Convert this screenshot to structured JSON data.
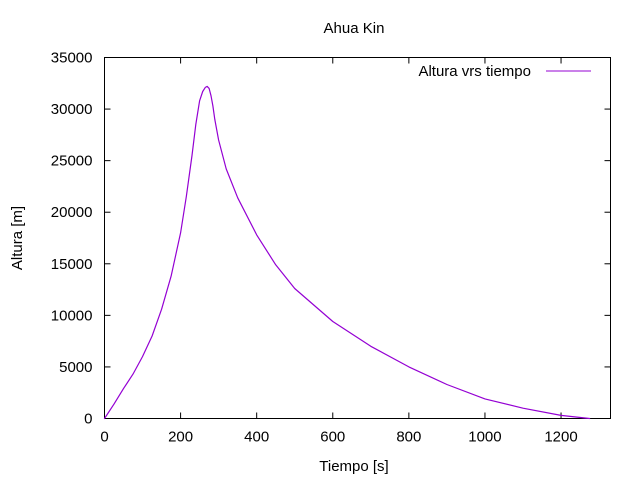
{
  "chart_data": {
    "type": "line",
    "title": "Ahua Kin",
    "xlabel": "Tiempo [s]",
    "ylabel": "Altura [m]",
    "xlim": [
      0,
      1330
    ],
    "ylim": [
      0,
      35000
    ],
    "x_ticks": [
      0,
      200,
      400,
      600,
      800,
      1000,
      1200
    ],
    "y_ticks": [
      0,
      5000,
      10000,
      15000,
      20000,
      25000,
      30000,
      35000
    ],
    "x_tick_labels": [
      "0",
      "200",
      "400",
      "600",
      "800",
      "1000",
      "1200"
    ],
    "y_tick_labels": [
      "0",
      "5000",
      "10000",
      "15000",
      "20000",
      "25000",
      "30000",
      "35000"
    ],
    "grid": false,
    "legend_position": "top-right",
    "series": [
      {
        "name": "Altura vrs tiempo",
        "color": "#9400d3",
        "x": [
          0,
          25,
          50,
          75,
          100,
          125,
          150,
          175,
          200,
          215,
          230,
          240,
          250,
          258,
          265,
          270,
          275,
          280,
          285,
          290,
          300,
          320,
          350,
          400,
          450,
          500,
          600,
          700,
          800,
          900,
          1000,
          1100,
          1200,
          1275
        ],
        "y": [
          0,
          1400,
          2900,
          4300,
          6000,
          8000,
          10600,
          13800,
          18000,
          21500,
          25500,
          28500,
          30800,
          31700,
          32100,
          32200,
          32000,
          31300,
          30300,
          29000,
          27000,
          24200,
          21400,
          17800,
          14900,
          12600,
          9400,
          7000,
          5000,
          3300,
          1900,
          1000,
          300,
          0
        ]
      }
    ]
  }
}
